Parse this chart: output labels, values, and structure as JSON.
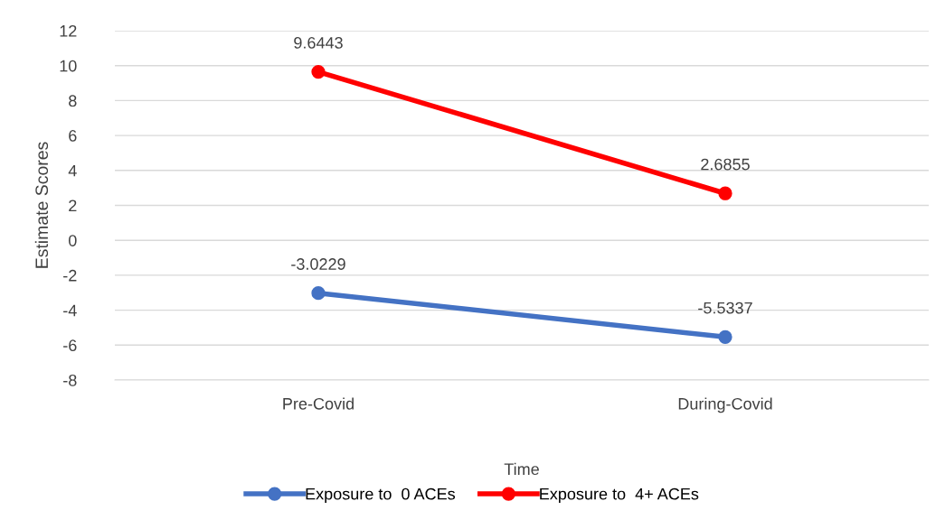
{
  "chart_data": {
    "type": "line",
    "xlabel": "Time",
    "ylabel": "Estimate Scores",
    "categories": [
      "Pre-Covid",
      "During-Covid"
    ],
    "series": [
      {
        "name": "Exposure to  0 ACEs",
        "color": "#4472c4",
        "values": [
          -3.0229,
          -5.5337
        ]
      },
      {
        "name": "Exposure to  4+ ACEs",
        "color": "#ff0000",
        "values": [
          9.6443,
          2.6855
        ]
      }
    ],
    "ylim": [
      -8,
      12
    ],
    "yticks": [
      -8,
      -6,
      -4,
      -2,
      0,
      2,
      4,
      6,
      8,
      10,
      12
    ],
    "grid": "y",
    "legend": "bottom",
    "marker": "circle",
    "line_style": "solid",
    "data_labels": true
  }
}
